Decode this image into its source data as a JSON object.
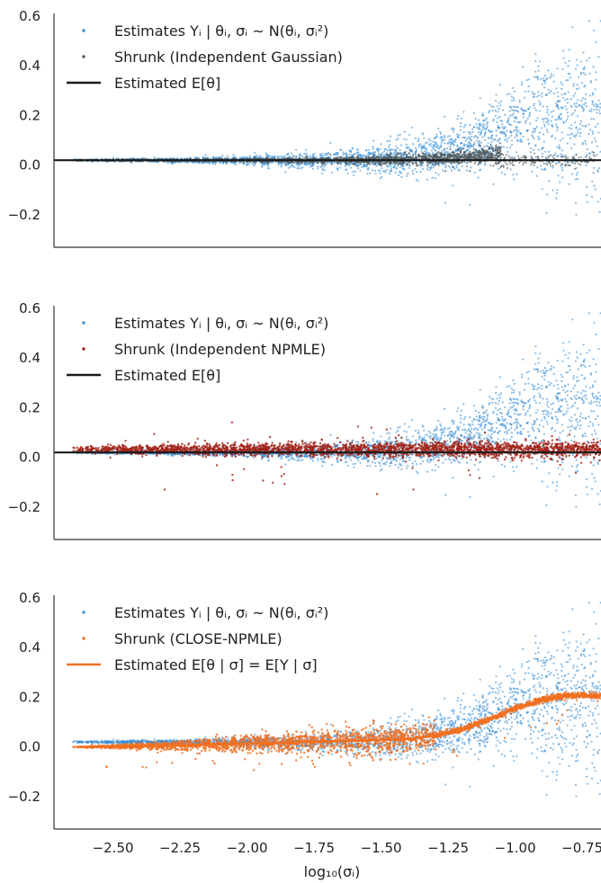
{
  "colors": {
    "estimates": "#3a8fd6",
    "shrunk_gaussian": "#4d5a5e",
    "shrunk_npmle": "#a32217",
    "shrunk_close": "#f07022",
    "estimated_mean_line": "#1a1a1a",
    "estimated_curve": "#f07022",
    "axis": "#333333",
    "text": "#222222"
  },
  "chart_data": [
    {
      "type": "scatter",
      "title": "",
      "xlabel": "",
      "ylabel": "",
      "xlim": [
        -2.72,
        -0.68
      ],
      "ylim": [
        -0.33,
        0.61
      ],
      "grid": false,
      "legend_position": "top-left",
      "x_ticks_visible": false,
      "y_ticks": [
        "0.6",
        "0.4",
        "0.2",
        "0.0",
        "−0.2"
      ],
      "y_tick_values": [
        0.6,
        0.4,
        0.2,
        0.0,
        -0.2
      ],
      "legend": [
        {
          "label": "Estimates Yᵢ | θᵢ, σᵢ ~ N(θᵢ, σᵢ²)",
          "marker": "dot",
          "color": "#3a8fd6"
        },
        {
          "label": "Shrunk (Independent Gaussian)",
          "marker": "dot",
          "color": "#4d5a5e"
        },
        {
          "label": "Estimated E[θ]",
          "marker": "line",
          "color": "#1a1a1a"
        }
      ],
      "series": [
        {
          "name": "Estimates Yᵢ | θᵢ, σᵢ ~ N(θᵢ, σᵢ²)",
          "kind": "estimates",
          "x_range": [
            -2.65,
            -0.68
          ],
          "color": "#3a8fd6"
        },
        {
          "name": "Shrunk (Independent Gaussian)",
          "kind": "gaussian_shrunk",
          "x_range": [
            -2.65,
            -0.68
          ],
          "color": "#4d5a5e"
        },
        {
          "name": "Estimated E[θ]",
          "kind": "hline",
          "y": 0.02,
          "color": "#1a1a1a"
        }
      ]
    },
    {
      "type": "scatter",
      "title": "",
      "xlabel": "",
      "ylabel": "",
      "xlim": [
        -2.72,
        -0.68
      ],
      "ylim": [
        -0.33,
        0.61
      ],
      "grid": false,
      "legend_position": "top-left",
      "x_ticks_visible": false,
      "y_ticks": [
        "0.6",
        "0.4",
        "0.2",
        "0.0",
        "−0.2"
      ],
      "y_tick_values": [
        0.6,
        0.4,
        0.2,
        0.0,
        -0.2
      ],
      "legend": [
        {
          "label": "Estimates Yᵢ | θᵢ, σᵢ ~ N(θᵢ, σᵢ²)",
          "marker": "dot",
          "color": "#3a8fd6"
        },
        {
          "label": "Shrunk (Independent NPMLE)",
          "marker": "dot",
          "color": "#a32217"
        },
        {
          "label": "Estimated E[θ]",
          "marker": "line",
          "color": "#1a1a1a"
        }
      ],
      "series": [
        {
          "name": "Estimates Yᵢ | θᵢ, σᵢ ~ N(θᵢ, σᵢ²)",
          "kind": "estimates",
          "x_range": [
            -2.65,
            -0.68
          ],
          "color": "#3a8fd6"
        },
        {
          "name": "Shrunk (Independent NPMLE)",
          "kind": "npmle_shrunk",
          "x_range": [
            -2.65,
            -0.68
          ],
          "color": "#a32217"
        },
        {
          "name": "Estimated E[θ]",
          "kind": "hline",
          "y": 0.02,
          "color": "#1a1a1a"
        }
      ]
    },
    {
      "type": "scatter",
      "title": "",
      "xlabel": "log₁₀(σᵢ)",
      "ylabel": "",
      "xlim": [
        -2.72,
        -0.68
      ],
      "ylim": [
        -0.33,
        0.61
      ],
      "grid": false,
      "legend_position": "top-left",
      "x_ticks": [
        "−2.50",
        "−2.25",
        "−2.00",
        "−1.75",
        "−1.50",
        "−1.25",
        "−1.00",
        "−0.75"
      ],
      "x_tick_values": [
        -2.5,
        -2.25,
        -2.0,
        -1.75,
        -1.5,
        -1.25,
        -1.0,
        -0.75
      ],
      "y_ticks": [
        "0.6",
        "0.4",
        "0.2",
        "0.0",
        "−0.2"
      ],
      "y_tick_values": [
        0.6,
        0.4,
        0.2,
        0.0,
        -0.2
      ],
      "legend": [
        {
          "label": "Estimates Yᵢ | θᵢ, σᵢ ~ N(θᵢ, σᵢ²)",
          "marker": "dot",
          "color": "#3a8fd6"
        },
        {
          "label": "Shrunk (CLOSE-NPMLE)",
          "marker": "dot",
          "color": "#f07022"
        },
        {
          "label": "Estimated E[θ | σ] = E[Y | σ]",
          "marker": "line",
          "color": "#f07022"
        }
      ],
      "series": [
        {
          "name": "Estimates Yᵢ | θᵢ, σᵢ ~ N(θᵢ, σᵢ²)",
          "kind": "estimates",
          "x_range": [
            -2.65,
            -0.68
          ],
          "color": "#3a8fd6"
        },
        {
          "name": "Shrunk (CLOSE-NPMLE)",
          "kind": "close_shrunk",
          "x_range": [
            -2.65,
            -0.68
          ],
          "color": "#f07022"
        },
        {
          "name": "Estimated E[θ | σ] = E[Y | σ]",
          "kind": "curve",
          "color": "#f07022",
          "x": [
            -2.63,
            -2.4,
            -2.2,
            -2.0,
            -1.8,
            -1.6,
            -1.4,
            -1.3,
            -1.2,
            -1.1,
            -1.0,
            -0.9,
            -0.82,
            -0.75,
            -0.7
          ],
          "y": [
            0.0,
            0.003,
            0.008,
            0.013,
            0.02,
            0.025,
            0.032,
            0.045,
            0.07,
            0.11,
            0.155,
            0.19,
            0.205,
            0.208,
            0.205
          ]
        }
      ]
    }
  ]
}
